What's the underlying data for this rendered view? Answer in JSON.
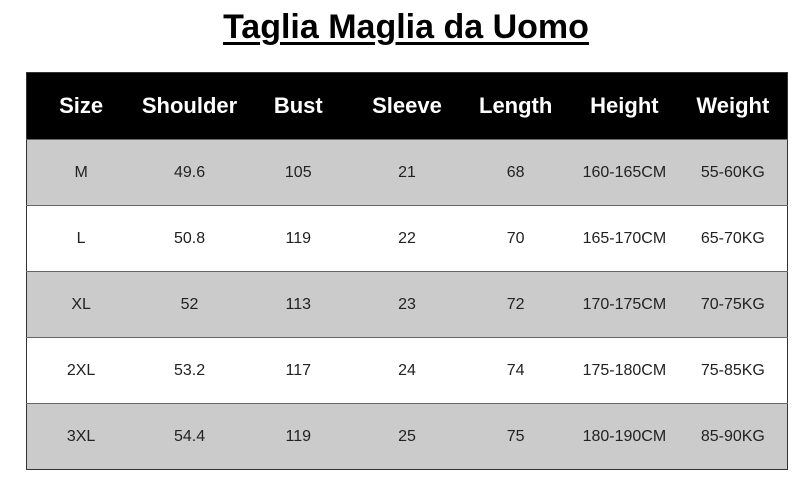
{
  "title": "Taglia Maglia da Uomo",
  "table": {
    "headers": [
      "Size",
      "Shoulder",
      "Bust",
      "Sleeve",
      "Length",
      "Height",
      "Weight"
    ],
    "rows": [
      [
        "M",
        "49.6",
        "105",
        "21",
        "68",
        "160-165CM",
        "55-60KG"
      ],
      [
        "L",
        "50.8",
        "119",
        "22",
        "70",
        "165-170CM",
        "65-70KG"
      ],
      [
        "XL",
        "52",
        "113",
        "23",
        "72",
        "170-175CM",
        "70-75KG"
      ],
      [
        "2XL",
        "53.2",
        "117",
        "24",
        "74",
        "175-180CM",
        "75-85KG"
      ],
      [
        "3XL",
        "54.4",
        "119",
        "25",
        "75",
        "180-190CM",
        "85-90KG"
      ]
    ]
  },
  "colors": {
    "header_bg": "#000000",
    "row_shaded": "#cbcbcb",
    "row_plain": "#ffffff"
  }
}
